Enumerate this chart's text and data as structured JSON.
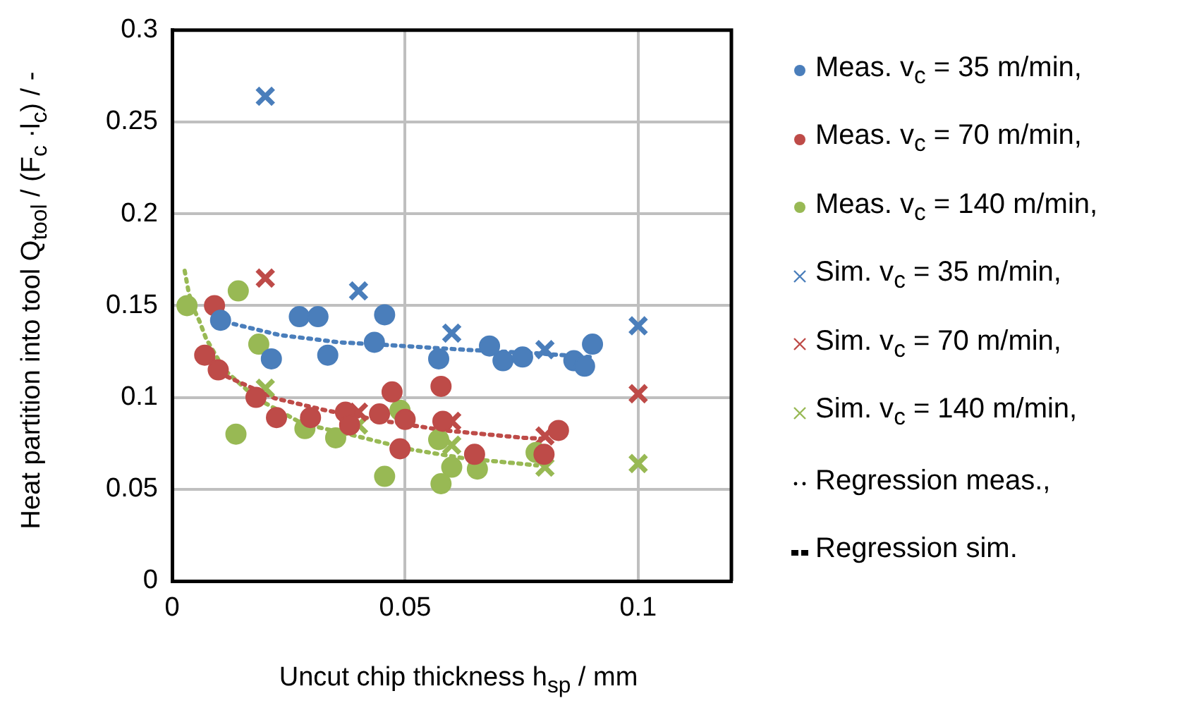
{
  "chart_data": {
    "type": "scatter",
    "xlabel": "Uncut chip thickness h$_{sp}$ / mm",
    "ylabel": "Heat partition into tool Q$_{tool}$ / (F$_{c}$ ·l$_{c}$) / -",
    "xlim": [
      0,
      0.12
    ],
    "xticks": [
      0,
      0.05,
      0.1
    ],
    "ylim": [
      0,
      0.3
    ],
    "yticks": [
      0,
      0.05,
      0.1,
      0.15,
      0.2,
      0.25,
      0.3
    ],
    "grid": true,
    "legend": "right",
    "series": [
      {
        "name": "Meas. v$_{c}$ = 35 m/min,",
        "type": "scatter",
        "marker": "circle",
        "color": "#4a7ebb",
        "x": [
          0.0104,
          0.0213,
          0.0273,
          0.0313,
          0.0334,
          0.0434,
          0.0456,
          0.0572,
          0.0681,
          0.071,
          0.0752,
          0.0862,
          0.0885,
          0.0902
        ],
        "values": [
          0.142,
          0.121,
          0.144,
          0.144,
          0.123,
          0.13,
          0.145,
          0.121,
          0.128,
          0.12,
          0.122,
          0.12,
          0.117,
          0.129
        ]
      },
      {
        "name": "Meas. v$_{c}$ = 70 m/min,",
        "type": "scatter",
        "marker": "circle",
        "color": "#be4b48",
        "x": [
          0.0091,
          0.007,
          0.0099,
          0.018,
          0.0224,
          0.0297,
          0.0372,
          0.0381,
          0.0445,
          0.0472,
          0.05,
          0.0489,
          0.0577,
          0.0581,
          0.0649,
          0.0798,
          0.0829
        ],
        "values": [
          0.15,
          0.123,
          0.115,
          0.1,
          0.089,
          0.089,
          0.092,
          0.085,
          0.091,
          0.103,
          0.088,
          0.072,
          0.106,
          0.087,
          0.069,
          0.069,
          0.082
        ]
      },
      {
        "name": "Meas. v$_{c}$ = 140 m/min,",
        "type": "scatter",
        "marker": "circle",
        "color": "#98b954",
        "x": [
          0.0032,
          0.0142,
          0.0186,
          0.0137,
          0.0285,
          0.0351,
          0.0456,
          0.0489,
          0.0572,
          0.06,
          0.0577,
          0.0655,
          0.0781
        ],
        "values": [
          0.15,
          0.158,
          0.129,
          0.08,
          0.083,
          0.078,
          0.057,
          0.093,
          0.077,
          0.062,
          0.053,
          0.061,
          0.07
        ]
      },
      {
        "name": "Sim. v$_{c}$ = 35 m/min,",
        "type": "scatter",
        "marker": "cross",
        "color": "#4a7ebb",
        "x": [
          0.02,
          0.04,
          0.06,
          0.08,
          0.1
        ],
        "values": [
          0.264,
          0.158,
          0.135,
          0.126,
          0.139
        ]
      },
      {
        "name": "Sim. v$_{c}$ = 70 m/min,",
        "type": "scatter",
        "marker": "cross",
        "color": "#be4b48",
        "x": [
          0.02,
          0.04,
          0.06,
          0.08,
          0.1
        ],
        "values": [
          0.165,
          0.092,
          0.087,
          0.079,
          0.102
        ]
      },
      {
        "name": "Sim. v$_{c}$ = 140 m/min,",
        "type": "scatter",
        "marker": "cross",
        "color": "#98b954",
        "x": [
          0.02,
          0.04,
          0.06,
          0.08,
          0.1
        ],
        "values": [
          0.105,
          0.085,
          0.074,
          0.062,
          0.064
        ]
      },
      {
        "type": "line",
        "marker": "none",
        "line_style": "dotted",
        "color": "#4a7ebb",
        "x": [
          0.0132,
          0.023,
          0.0359,
          0.0497,
          0.0625,
          0.0783,
          0.0896
        ],
        "values": [
          0.14,
          0.134,
          0.13,
          0.128,
          0.126,
          0.124,
          0.122
        ]
      },
      {
        "type": "line",
        "marker": "none",
        "line_style": "dotted",
        "color": "#be4b48",
        "x": [
          0.0075,
          0.0112,
          0.0221,
          0.0329,
          0.0458,
          0.0586,
          0.0754,
          0.08
        ],
        "values": [
          0.126,
          0.112,
          0.0995,
          0.093,
          0.087,
          0.082,
          0.078,
          0.0775
        ]
      },
      {
        "type": "line",
        "marker": "none",
        "line_style": "dotted",
        "color": "#98b954",
        "x": [
          0.0027,
          0.0035,
          0.0043,
          0.0058,
          0.0073,
          0.0112,
          0.0181,
          0.028,
          0.0388,
          0.0507,
          0.0625,
          0.0783
        ],
        "values": [
          0.169,
          0.158,
          0.15,
          0.142,
          0.132,
          0.115,
          0.0995,
          0.0857,
          0.0794,
          0.0719,
          0.0669,
          0.063
        ]
      },
      {
        "name": "Regression meas.,",
        "type": "line",
        "marker": "none",
        "line_style": "dotted",
        "color": "#000000"
      },
      {
        "name": "Regression sim.",
        "type": "line",
        "marker": "none",
        "line_style": "dashed",
        "color": "#000000"
      }
    ]
  }
}
